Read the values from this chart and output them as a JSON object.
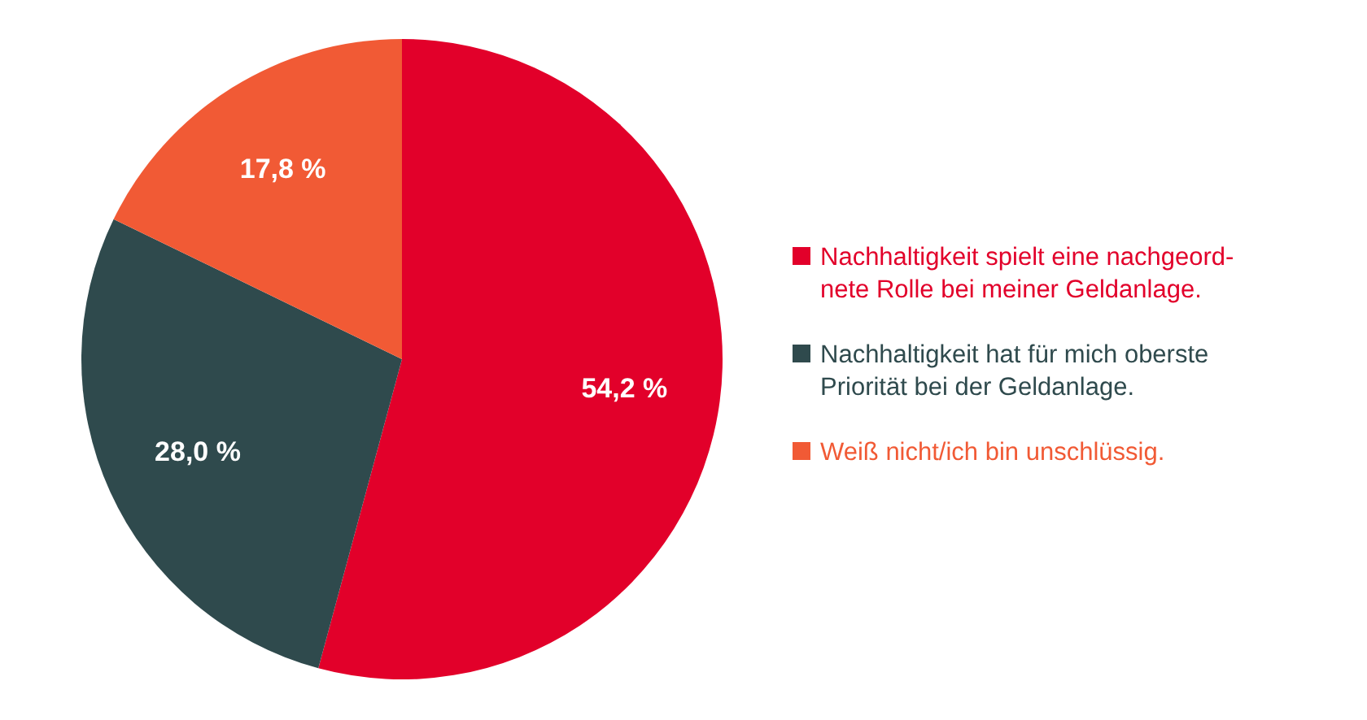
{
  "chart_data": {
    "type": "pie",
    "categories": [
      "Nachhaltigkeit spielt eine nachgeord-\nnete Rolle bei meiner Geldanlage.",
      "Nachhaltigkeit hat für mich oberste\nPriorität bei der Geldanlage.",
      "Weiß nicht/ich bin unschlüssig."
    ],
    "values": [
      54.2,
      28.0,
      17.8
    ],
    "colors": [
      "#e2002a",
      "#2f4a4d",
      "#f15a35"
    ],
    "value_labels": [
      "54,2 %",
      "28,0 %",
      "17,8 %"
    ],
    "legend": "right"
  }
}
